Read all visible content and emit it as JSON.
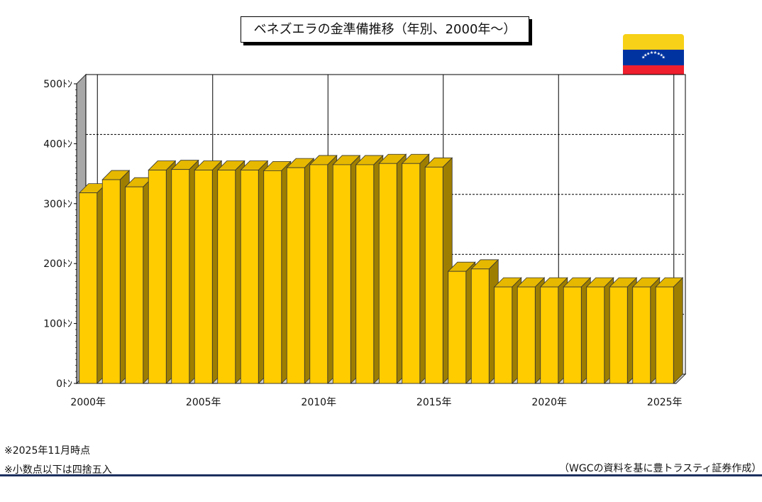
{
  "title": "ベネズエラの金準備推移（年別、2000年～）",
  "flag": {
    "colors": [
      "#f7d117",
      "#0033a0",
      "#ef1f2e"
    ],
    "stars_color": "#ffffff"
  },
  "notes": {
    "as_of": "※2025年11月時点",
    "rounding": "※小数点以下は四捨五入",
    "source": "（WGCの資料を基に豊トラスティ証券作成）"
  },
  "chart_data": {
    "type": "bar",
    "title": "ベネズエラの金準備推移（年別、2000年～）",
    "xlabel": "",
    "ylabel": "",
    "unit": "トン",
    "ylim": [
      0,
      500
    ],
    "yticks": [
      0,
      100,
      200,
      300,
      400,
      500
    ],
    "ytick_labels": [
      "0ﾄﾝ",
      "100ﾄﾝ",
      "200ﾄﾝ",
      "300ﾄﾝ",
      "400ﾄﾝ",
      "500ﾄﾝ"
    ],
    "categories": [
      "2000",
      "2001",
      "2002",
      "2003",
      "2004",
      "2005",
      "2006",
      "2007",
      "2008",
      "2009",
      "2010",
      "2011",
      "2012",
      "2013",
      "2014",
      "2015",
      "2016",
      "2017",
      "2018",
      "2019",
      "2020",
      "2021",
      "2022",
      "2023",
      "2024",
      "2025"
    ],
    "xtick_labels": [
      {
        "index": 0,
        "label": "2000年"
      },
      {
        "index": 5,
        "label": "2005年"
      },
      {
        "index": 10,
        "label": "2010年"
      },
      {
        "index": 15,
        "label": "2015年"
      },
      {
        "index": 20,
        "label": "2020年"
      },
      {
        "index": 25,
        "label": "2025年"
      }
    ],
    "values": [
      318,
      340,
      328,
      356,
      357,
      356,
      356,
      356,
      355,
      360,
      365,
      365,
      365,
      367,
      367,
      361,
      187,
      191,
      161,
      161,
      161,
      161,
      161,
      161,
      161,
      161
    ],
    "bar_color": "#ffcc00",
    "grid": "y-dashed, x-solid at 5-year marks"
  }
}
